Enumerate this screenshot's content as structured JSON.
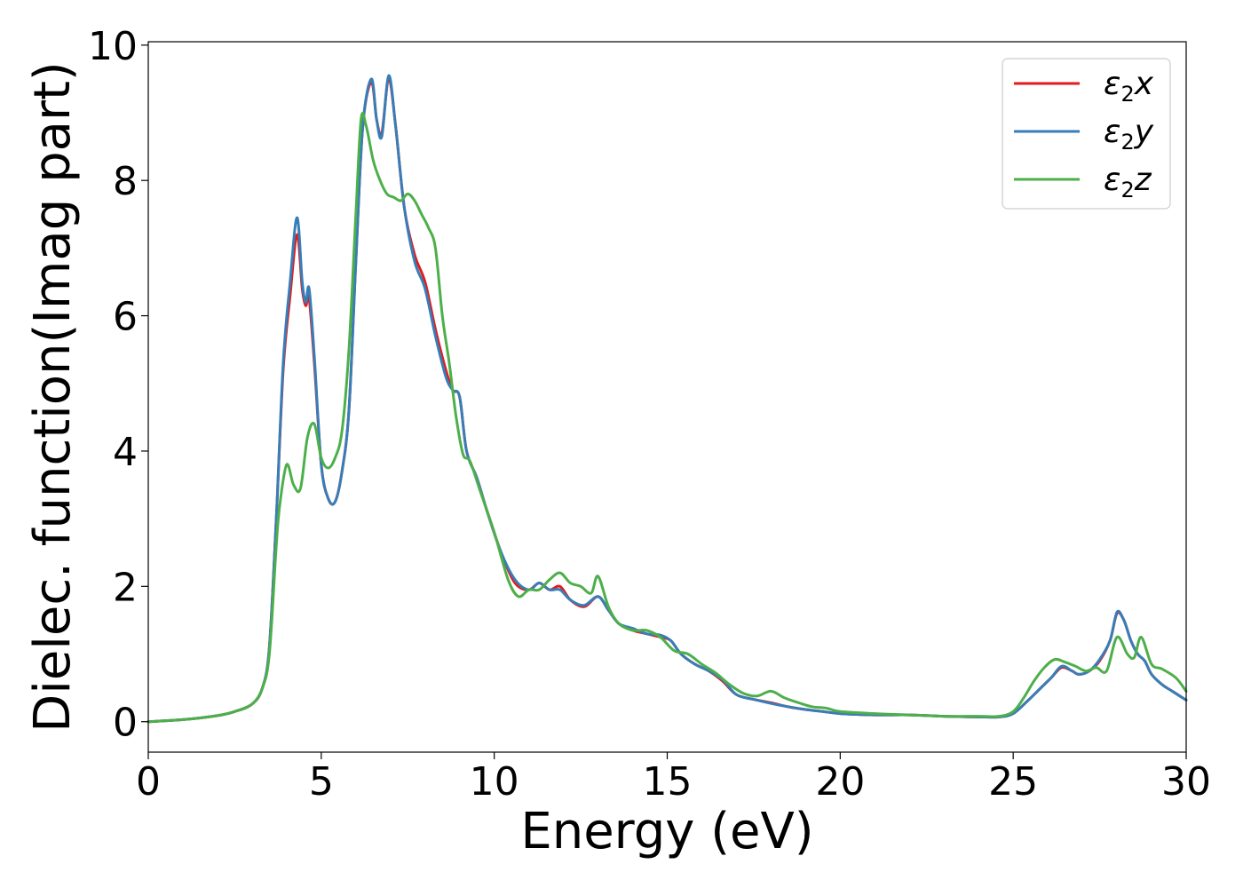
{
  "chart_data": {
    "type": "line",
    "xlabel": "Energy (eV)",
    "ylabel": "Dielec. function(Imag part)",
    "xlim": [
      0,
      30
    ],
    "ylim": [
      -0.45,
      10.05
    ],
    "xticks": [
      0,
      5,
      10,
      15,
      20,
      25,
      30
    ],
    "yticks": [
      0,
      2,
      4,
      6,
      8,
      10
    ],
    "xtick_labels": [
      "0",
      "5",
      "10",
      "15",
      "20",
      "25",
      "30"
    ],
    "ytick_labels": [
      "0",
      "2",
      "4",
      "6",
      "8",
      "10"
    ],
    "grid": false,
    "legend_position": "top-right",
    "series": [
      {
        "name": "ε₂x",
        "legend_base": "ε",
        "legend_sub": "2",
        "legend_var": "x",
        "color": "#e41a1c",
        "x": [
          0,
          1,
          2,
          2.5,
          3,
          3.3,
          3.5,
          3.7,
          3.9,
          4.1,
          4.3,
          4.45,
          4.55,
          4.65,
          4.8,
          5.0,
          5.2,
          5.4,
          5.6,
          5.8,
          6.0,
          6.2,
          6.45,
          6.6,
          6.75,
          6.95,
          7.15,
          7.4,
          7.7,
          8.0,
          8.3,
          8.6,
          8.8,
          9.0,
          9.2,
          9.5,
          9.8,
          10.2,
          10.6,
          11.0,
          11.3,
          11.6,
          11.9,
          12.2,
          12.6,
          13.0,
          13.3,
          13.6,
          14.0,
          14.4,
          14.8,
          15.1,
          15.4,
          15.8,
          16.2,
          16.6,
          17.0,
          17.5,
          18.0,
          18.5,
          19.0,
          19.5,
          20.0,
          21.0,
          22.0,
          23.0,
          24.0,
          24.6,
          25.0,
          25.4,
          25.8,
          26.1,
          26.4,
          26.7,
          26.9,
          27.2,
          27.5,
          27.8,
          28.0,
          28.2,
          28.4,
          28.6,
          28.8,
          29.0,
          29.3,
          29.6,
          30.0
        ],
        "y": [
          0,
          0.03,
          0.09,
          0.15,
          0.26,
          0.5,
          1.1,
          3.0,
          5.2,
          6.3,
          7.2,
          6.4,
          6.15,
          6.25,
          5.3,
          3.8,
          3.3,
          3.25,
          3.7,
          4.6,
          6.8,
          8.8,
          9.45,
          8.9,
          8.7,
          9.5,
          8.8,
          7.6,
          6.9,
          6.5,
          5.8,
          5.2,
          4.9,
          4.8,
          4.0,
          3.6,
          3.1,
          2.5,
          2.05,
          1.95,
          2.05,
          1.95,
          2.0,
          1.8,
          1.7,
          1.85,
          1.65,
          1.45,
          1.35,
          1.3,
          1.25,
          1.2,
          1.0,
          0.85,
          0.75,
          0.6,
          0.4,
          0.33,
          0.28,
          0.22,
          0.18,
          0.15,
          0.12,
          0.1,
          0.1,
          0.08,
          0.07,
          0.07,
          0.12,
          0.3,
          0.5,
          0.65,
          0.8,
          0.75,
          0.7,
          0.75,
          0.9,
          1.2,
          1.6,
          1.5,
          1.2,
          1.0,
          0.9,
          0.7,
          0.55,
          0.45,
          0.32
        ]
      },
      {
        "name": "ε₂y",
        "legend_base": "ε",
        "legend_sub": "2",
        "legend_var": "y",
        "color": "#377eb8",
        "x": [
          0,
          1,
          2,
          2.5,
          3,
          3.3,
          3.5,
          3.7,
          3.9,
          4.1,
          4.3,
          4.45,
          4.55,
          4.65,
          4.8,
          5.0,
          5.2,
          5.4,
          5.6,
          5.8,
          6.0,
          6.2,
          6.45,
          6.6,
          6.75,
          6.95,
          7.15,
          7.4,
          7.7,
          8.0,
          8.3,
          8.6,
          8.8,
          9.0,
          9.2,
          9.5,
          9.8,
          10.2,
          10.6,
          11.0,
          11.3,
          11.6,
          11.9,
          12.2,
          12.6,
          13.0,
          13.3,
          13.6,
          14.0,
          14.4,
          14.8,
          15.1,
          15.4,
          15.8,
          16.2,
          16.6,
          17.0,
          17.5,
          18.0,
          18.5,
          19.0,
          19.5,
          20.0,
          21.0,
          22.0,
          23.0,
          24.0,
          24.6,
          25.0,
          25.4,
          25.8,
          26.1,
          26.4,
          26.7,
          26.9,
          27.2,
          27.5,
          27.8,
          28.0,
          28.2,
          28.4,
          28.6,
          28.8,
          29.0,
          29.3,
          29.6,
          30.0
        ],
        "y": [
          0,
          0.03,
          0.09,
          0.15,
          0.26,
          0.5,
          1.1,
          3.0,
          5.3,
          6.5,
          7.45,
          6.5,
          6.2,
          6.4,
          5.4,
          3.8,
          3.3,
          3.25,
          3.7,
          4.6,
          6.8,
          8.8,
          9.5,
          8.9,
          8.65,
          9.55,
          8.8,
          7.6,
          6.8,
          6.4,
          5.7,
          5.1,
          4.9,
          4.8,
          4.0,
          3.6,
          3.1,
          2.5,
          2.1,
          1.95,
          2.05,
          1.95,
          1.95,
          1.8,
          1.72,
          1.85,
          1.65,
          1.45,
          1.38,
          1.3,
          1.28,
          1.2,
          1.0,
          0.85,
          0.75,
          0.62,
          0.4,
          0.33,
          0.27,
          0.22,
          0.18,
          0.15,
          0.12,
          0.1,
          0.1,
          0.08,
          0.07,
          0.07,
          0.12,
          0.3,
          0.5,
          0.65,
          0.82,
          0.75,
          0.7,
          0.75,
          0.92,
          1.2,
          1.62,
          1.5,
          1.2,
          1.0,
          0.9,
          0.7,
          0.55,
          0.45,
          0.32
        ]
      },
      {
        "name": "ε₂z",
        "legend_base": "ε",
        "legend_sub": "2",
        "legend_var": "z",
        "color": "#4daf4a",
        "x": [
          0,
          1,
          2,
          2.5,
          3,
          3.3,
          3.5,
          3.7,
          3.8,
          4.0,
          4.2,
          4.4,
          4.6,
          4.8,
          5.0,
          5.2,
          5.4,
          5.6,
          5.8,
          6.0,
          6.15,
          6.3,
          6.5,
          6.7,
          6.9,
          7.1,
          7.3,
          7.5,
          7.7,
          7.9,
          8.1,
          8.3,
          8.5,
          8.7,
          8.9,
          9.1,
          9.3,
          9.6,
          10.0,
          10.4,
          10.7,
          11.0,
          11.3,
          11.6,
          11.9,
          12.2,
          12.5,
          12.8,
          13.0,
          13.3,
          13.6,
          14.0,
          14.4,
          14.8,
          15.2,
          15.6,
          16.0,
          16.4,
          16.8,
          17.2,
          17.6,
          18.0,
          18.4,
          18.8,
          19.2,
          19.6,
          20.0,
          21.0,
          22.0,
          23.0,
          24.0,
          24.6,
          25.0,
          25.3,
          25.6,
          25.9,
          26.2,
          26.5,
          26.8,
          27.1,
          27.4,
          27.7,
          28.0,
          28.3,
          28.5,
          28.7,
          29.0,
          29.3,
          29.7,
          30.0
        ],
        "y": [
          0,
          0.03,
          0.09,
          0.15,
          0.26,
          0.5,
          1.0,
          2.6,
          3.2,
          3.8,
          3.5,
          3.45,
          4.2,
          4.4,
          3.9,
          3.75,
          3.9,
          4.3,
          5.5,
          7.5,
          8.9,
          8.8,
          8.3,
          8.0,
          7.8,
          7.75,
          7.7,
          7.8,
          7.7,
          7.5,
          7.3,
          7.0,
          6.0,
          5.3,
          4.5,
          3.95,
          3.85,
          3.4,
          2.8,
          2.1,
          1.85,
          1.95,
          1.95,
          2.1,
          2.2,
          2.05,
          2.0,
          1.9,
          2.15,
          1.7,
          1.45,
          1.35,
          1.35,
          1.25,
          1.05,
          1.0,
          0.85,
          0.72,
          0.55,
          0.42,
          0.38,
          0.45,
          0.35,
          0.28,
          0.22,
          0.2,
          0.15,
          0.12,
          0.1,
          0.08,
          0.08,
          0.08,
          0.15,
          0.35,
          0.6,
          0.8,
          0.92,
          0.88,
          0.82,
          0.75,
          0.8,
          0.75,
          1.25,
          1.0,
          0.95,
          1.25,
          0.85,
          0.78,
          0.65,
          0.45
        ]
      }
    ]
  }
}
